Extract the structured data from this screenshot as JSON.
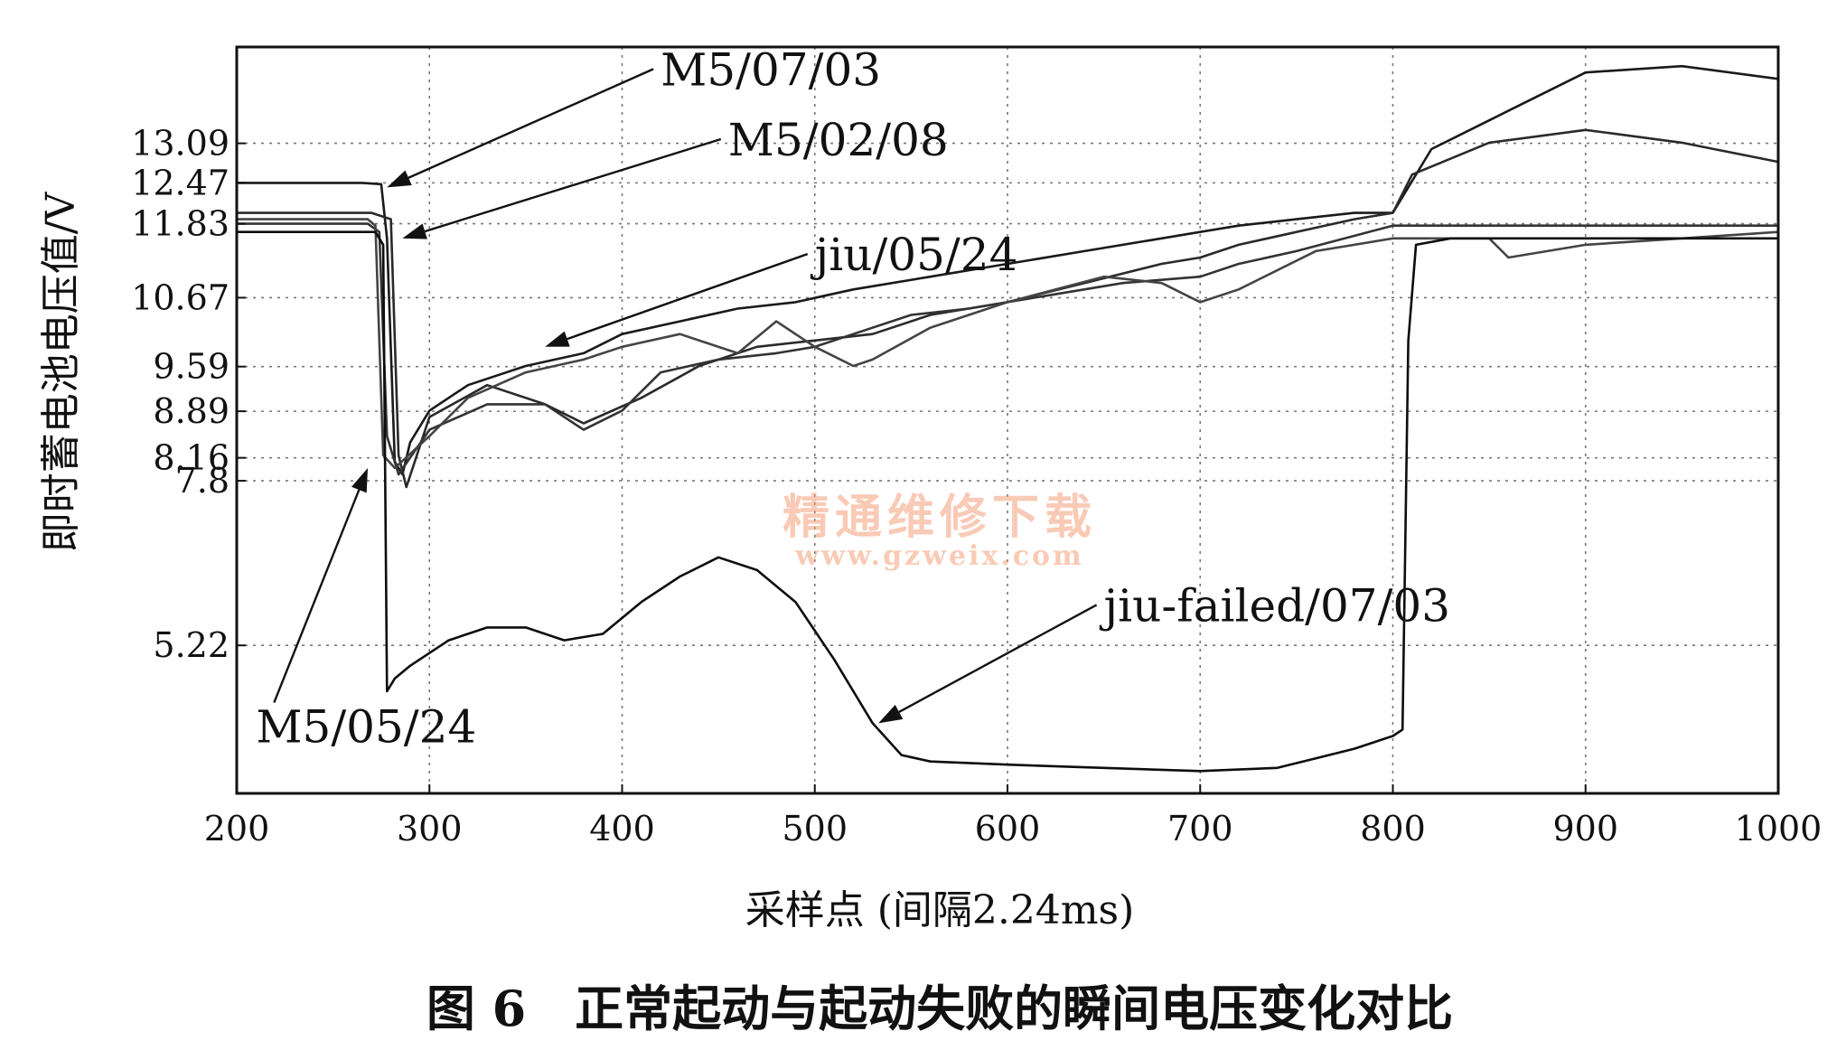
{
  "chart_data": {
    "type": "line",
    "title": "",
    "caption": "图 6　正常起动与起动失败的瞬间电压变化对比",
    "xlabel": "采样点 (间隔2.24ms)",
    "ylabel": "即时蓄电池电压值/V",
    "xlim": [
      200,
      1000
    ],
    "ylim": [
      2.9,
      14.6
    ],
    "xticks": [
      200,
      300,
      400,
      500,
      600,
      700,
      800,
      900,
      1000
    ],
    "yticks": [
      5.22,
      7.8,
      8.16,
      8.89,
      9.59,
      10.67,
      11.83,
      12.47,
      13.09
    ],
    "ytick_labels": [
      "5.22",
      "7.8",
      "8.16",
      "8.89",
      "9.59",
      "10.67",
      "11.83",
      "12.47",
      "13.09"
    ],
    "grid": true,
    "legend": "none (direct labels with arrows)",
    "series": [
      {
        "name": "M5/07/03",
        "color": "#1a1a1a",
        "x": [
          200,
          265,
          275,
          278,
          282,
          286,
          290,
          300,
          320,
          350,
          380,
          400,
          430,
          460,
          490,
          520,
          560,
          600,
          640,
          680,
          700,
          720,
          750,
          780,
          800,
          820,
          860,
          900,
          950,
          1000
        ],
        "y": [
          12.47,
          12.47,
          12.45,
          11.6,
          8.1,
          7.9,
          8.4,
          8.9,
          9.3,
          9.6,
          9.8,
          10.1,
          10.3,
          10.5,
          10.6,
          10.8,
          11.0,
          11.2,
          11.4,
          11.6,
          11.7,
          11.8,
          11.9,
          12.0,
          12.0,
          13.0,
          13.6,
          14.2,
          14.3,
          14.1
        ]
      },
      {
        "name": "M5/02/08",
        "color": "#2a2a2a",
        "x": [
          200,
          270,
          280,
          284,
          288,
          300,
          330,
          360,
          380,
          410,
          440,
          470,
          500,
          530,
          560,
          600,
          640,
          680,
          700,
          720,
          750,
          780,
          800,
          810,
          850,
          900,
          950,
          1000
        ],
        "y": [
          12.0,
          12.0,
          11.9,
          8.2,
          7.7,
          8.8,
          9.3,
          9.0,
          8.7,
          9.1,
          9.6,
          9.9,
          10.0,
          10.1,
          10.4,
          10.6,
          10.9,
          11.2,
          11.3,
          11.5,
          11.7,
          11.9,
          12.0,
          12.6,
          13.1,
          13.3,
          13.1,
          12.8
        ]
      },
      {
        "name": "jiu/05/24",
        "color": "#333333",
        "x": [
          200,
          268,
          274,
          278,
          284,
          300,
          330,
          360,
          380,
          400,
          420,
          450,
          480,
          500,
          520,
          550,
          580,
          620,
          660,
          700,
          720,
          750,
          800,
          850,
          900,
          950,
          1000
        ],
        "y": [
          11.83,
          11.83,
          11.7,
          8.5,
          7.9,
          8.6,
          9.0,
          9.0,
          8.6,
          8.9,
          9.5,
          9.7,
          9.8,
          9.9,
          10.1,
          10.4,
          10.5,
          10.7,
          10.9,
          11.0,
          11.2,
          11.4,
          11.8,
          11.8,
          11.8,
          11.8,
          11.8
        ]
      },
      {
        "name": "M5/05/24",
        "color": "#444444",
        "x": [
          200,
          268,
          272,
          276,
          282,
          300,
          320,
          350,
          380,
          400,
          430,
          460,
          480,
          500,
          520,
          530,
          560,
          600,
          650,
          680,
          700,
          720,
          760,
          800,
          850,
          860,
          900,
          950,
          1000
        ],
        "y": [
          11.9,
          11.9,
          11.8,
          8.2,
          8.0,
          8.5,
          9.1,
          9.5,
          9.7,
          9.9,
          10.1,
          9.8,
          10.3,
          9.9,
          9.6,
          9.7,
          10.2,
          10.6,
          11.0,
          10.9,
          10.6,
          10.8,
          11.4,
          11.6,
          11.6,
          11.3,
          11.5,
          11.6,
          11.7
        ]
      },
      {
        "name": "jiu-failed/07/03",
        "color": "#0d0d0d",
        "x": [
          200,
          272,
          276,
          278,
          282,
          290,
          310,
          330,
          350,
          370,
          390,
          410,
          430,
          450,
          470,
          490,
          510,
          530,
          545,
          560,
          600,
          650,
          700,
          740,
          760,
          780,
          800,
          805,
          808,
          812,
          830,
          860,
          900,
          950,
          1000
        ],
        "y": [
          11.7,
          11.7,
          11.5,
          4.5,
          4.7,
          4.9,
          5.3,
          5.5,
          5.5,
          5.3,
          5.4,
          5.9,
          6.3,
          6.6,
          6.4,
          5.9,
          5.0,
          4.0,
          3.5,
          3.4,
          3.35,
          3.3,
          3.25,
          3.3,
          3.45,
          3.6,
          3.8,
          3.9,
          10.0,
          11.5,
          11.6,
          11.6,
          11.6,
          11.6,
          11.6
        ]
      }
    ],
    "annotations": [
      {
        "text": "M5/07/03",
        "series": "M5/07/03",
        "label_at": [
          420,
          14.0
        ],
        "arrow_to": [
          278,
          12.4
        ]
      },
      {
        "text": "M5/02/08",
        "series": "M5/02/08",
        "label_at": [
          455,
          12.9
        ],
        "arrow_to": [
          286,
          11.6
        ]
      },
      {
        "text": "jiu/05/24",
        "series": "jiu/05/24",
        "label_at": [
          500,
          11.1
        ],
        "arrow_to": [
          360,
          9.9
        ]
      },
      {
        "text": "M5/05/24",
        "series": "M5/05/24",
        "label_at": [
          210,
          3.7
        ],
        "arrow_to": [
          268,
          8.0
        ]
      },
      {
        "text": "jiu-failed/07/03",
        "series": "jiu-failed/07/03",
        "label_at": [
          650,
          5.6
        ],
        "arrow_to": [
          533,
          4.0
        ]
      }
    ]
  },
  "watermark": {
    "line1": "精通维修下载",
    "line2": "www.gzweix.com"
  }
}
